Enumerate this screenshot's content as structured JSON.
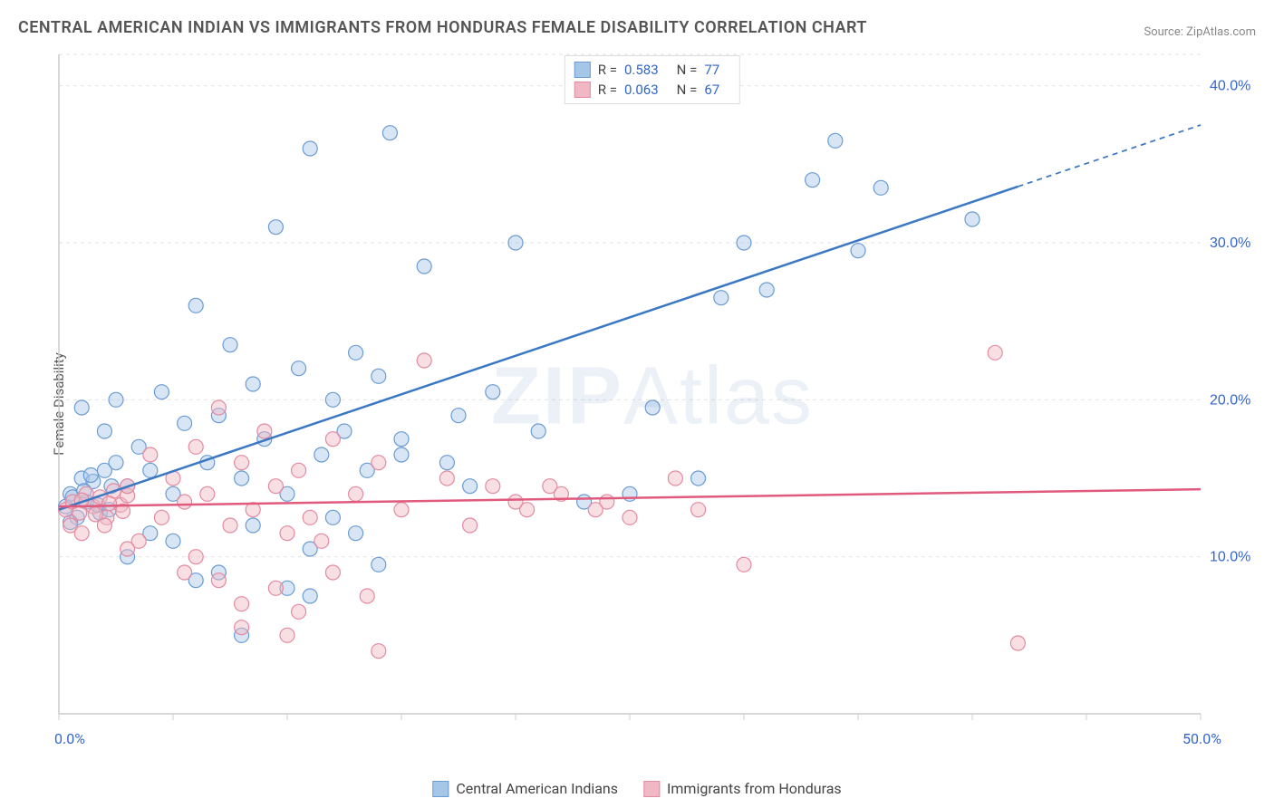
{
  "title": "CENTRAL AMERICAN INDIAN VS IMMIGRANTS FROM HONDURAS FEMALE DISABILITY CORRELATION CHART",
  "source": "Source: ZipAtlas.com",
  "y_axis_label": "Female Disability",
  "watermark": "ZIPAtlas",
  "chart": {
    "type": "scatter",
    "background_color": "#ffffff",
    "grid_color": "#e2e2e2",
    "axis_line_color": "#cccccc",
    "tick_label_color": "#3366cc",
    "xlim": [
      0,
      50
    ],
    "ylim": [
      0,
      42
    ],
    "x_ticks": [
      0,
      5,
      10,
      15,
      20,
      25,
      30,
      35,
      40,
      45,
      50
    ],
    "x_tick_labels_shown": {
      "0": "0.0%",
      "50": "50.0%"
    },
    "y_ticks": [
      10,
      20,
      30,
      40
    ],
    "y_tick_labels": {
      "10": "10.0%",
      "20": "20.0%",
      "30": "30.0%",
      "40": "40.0%"
    },
    "marker_radius": 8,
    "marker_opacity": 0.45,
    "line_width": 2.5,
    "series": [
      {
        "name": "Central American Indians",
        "color_fill": "#a6c6e8",
        "color_stroke": "#6a9cd4",
        "line_color": "#3b78c4",
        "r": "0.583",
        "n": "77",
        "trend_start": {
          "x": 0,
          "y": 13.0
        },
        "trend_end": {
          "x": 50,
          "y": 37.5
        },
        "trend_solid_end_x": 42,
        "points": [
          [
            0.3,
            13.2
          ],
          [
            0.5,
            14.0
          ],
          [
            0.8,
            12.5
          ],
          [
            1.0,
            15.0
          ],
          [
            1.2,
            13.5
          ],
          [
            1.5,
            14.8
          ],
          [
            1.8,
            12.8
          ],
          [
            2.0,
            15.5
          ],
          [
            2.2,
            13.0
          ],
          [
            2.5,
            16.0
          ],
          [
            0.6,
            13.8
          ],
          [
            1.1,
            14.2
          ],
          [
            1.4,
            15.2
          ],
          [
            1.7,
            13.3
          ],
          [
            2.3,
            14.5
          ],
          [
            0.5,
            12.2
          ],
          [
            1.0,
            19.5
          ],
          [
            2.0,
            18.0
          ],
          [
            2.5,
            20.0
          ],
          [
            3.0,
            14.5
          ],
          [
            3.5,
            17.0
          ],
          [
            4.0,
            15.5
          ],
          [
            4.5,
            20.5
          ],
          [
            5.0,
            14.0
          ],
          [
            5.5,
            18.5
          ],
          [
            6.0,
            26.0
          ],
          [
            6.5,
            16.0
          ],
          [
            7.0,
            19.0
          ],
          [
            7.5,
            23.5
          ],
          [
            8.0,
            15.0
          ],
          [
            8.5,
            21.0
          ],
          [
            9.0,
            17.5
          ],
          [
            9.5,
            31.0
          ],
          [
            10.0,
            14.0
          ],
          [
            10.5,
            22.0
          ],
          [
            11.0,
            36.0
          ],
          [
            11.5,
            16.5
          ],
          [
            12.0,
            20.0
          ],
          [
            12.5,
            18.0
          ],
          [
            13.0,
            23.0
          ],
          [
            13.5,
            15.5
          ],
          [
            14.0,
            21.5
          ],
          [
            14.5,
            37.0
          ],
          [
            15.0,
            17.5
          ],
          [
            16.0,
            28.5
          ],
          [
            17.0,
            16.0
          ],
          [
            17.5,
            19.0
          ],
          [
            18.0,
            14.5
          ],
          [
            19.0,
            20.5
          ],
          [
            20.0,
            30.0
          ],
          [
            21.0,
            18.0
          ],
          [
            3.0,
            10.0
          ],
          [
            5.0,
            11.0
          ],
          [
            7.0,
            9.0
          ],
          [
            8.5,
            12.0
          ],
          [
            10.0,
            8.0
          ],
          [
            11.0,
            10.5
          ],
          [
            13.0,
            11.5
          ],
          [
            14.0,
            9.5
          ],
          [
            8.0,
            5.0
          ],
          [
            11.0,
            7.5
          ],
          [
            12.0,
            12.5
          ],
          [
            6.0,
            8.5
          ],
          [
            4.0,
            11.5
          ],
          [
            15.0,
            16.5
          ],
          [
            28.0,
            15.0
          ],
          [
            29.0,
            26.5
          ],
          [
            30.0,
            30.0
          ],
          [
            31.0,
            27.0
          ],
          [
            33.0,
            34.0
          ],
          [
            34.0,
            36.5
          ],
          [
            35.0,
            29.5
          ],
          [
            36.0,
            33.5
          ],
          [
            40.0,
            31.5
          ],
          [
            23.0,
            13.5
          ],
          [
            25.0,
            14.0
          ],
          [
            26.0,
            19.5
          ]
        ]
      },
      {
        "name": "Immigrants from Honduras",
        "color_fill": "#f0b8c4",
        "color_stroke": "#e48aa0",
        "line_color": "#e05a7e",
        "r": "0.063",
        "n": "67",
        "trend_start": {
          "x": 0,
          "y": 13.2
        },
        "trend_end": {
          "x": 50,
          "y": 14.3
        },
        "trend_solid_end_x": 50,
        "points": [
          [
            0.3,
            13.0
          ],
          [
            0.6,
            13.5
          ],
          [
            0.9,
            12.8
          ],
          [
            1.2,
            14.0
          ],
          [
            1.5,
            13.2
          ],
          [
            1.8,
            13.8
          ],
          [
            2.1,
            12.5
          ],
          [
            2.4,
            14.2
          ],
          [
            2.7,
            13.3
          ],
          [
            3.0,
            13.9
          ],
          [
            0.5,
            12.0
          ],
          [
            1.0,
            13.6
          ],
          [
            1.6,
            12.7
          ],
          [
            2.2,
            13.4
          ],
          [
            2.8,
            12.9
          ],
          [
            1.0,
            11.5
          ],
          [
            2.0,
            12.0
          ],
          [
            3.0,
            14.5
          ],
          [
            3.5,
            11.0
          ],
          [
            4.0,
            16.5
          ],
          [
            4.5,
            12.5
          ],
          [
            5.0,
            15.0
          ],
          [
            5.5,
            13.5
          ],
          [
            6.0,
            17.0
          ],
          [
            6.5,
            14.0
          ],
          [
            7.0,
            19.5
          ],
          [
            7.5,
            12.0
          ],
          [
            8.0,
            16.0
          ],
          [
            8.5,
            13.0
          ],
          [
            9.0,
            18.0
          ],
          [
            9.5,
            14.5
          ],
          [
            10.0,
            11.5
          ],
          [
            10.5,
            15.5
          ],
          [
            11.0,
            12.5
          ],
          [
            12.0,
            17.5
          ],
          [
            13.0,
            14.0
          ],
          [
            14.0,
            16.0
          ],
          [
            15.0,
            13.0
          ],
          [
            16.0,
            22.5
          ],
          [
            17.0,
            15.0
          ],
          [
            18.0,
            12.0
          ],
          [
            19.0,
            14.5
          ],
          [
            20.0,
            13.5
          ],
          [
            3.0,
            10.5
          ],
          [
            5.5,
            9.0
          ],
          [
            7.0,
            8.5
          ],
          [
            8.0,
            7.0
          ],
          [
            9.5,
            8.0
          ],
          [
            10.5,
            6.5
          ],
          [
            12.0,
            9.0
          ],
          [
            13.5,
            7.5
          ],
          [
            14.0,
            4.0
          ],
          [
            8.0,
            5.5
          ],
          [
            10.0,
            5.0
          ],
          [
            11.5,
            11.0
          ],
          [
            6.0,
            10.0
          ],
          [
            22.0,
            14.0
          ],
          [
            24.0,
            13.5
          ],
          [
            25.0,
            12.5
          ],
          [
            27.0,
            15.0
          ],
          [
            28.0,
            13.0
          ],
          [
            30.0,
            9.5
          ],
          [
            41.0,
            23.0
          ],
          [
            42.0,
            4.5
          ],
          [
            20.5,
            13.0
          ],
          [
            21.5,
            14.5
          ],
          [
            23.5,
            13.0
          ]
        ]
      }
    ]
  },
  "legend_bottom": [
    {
      "label": "Central American Indians",
      "fill": "#a6c6e8",
      "stroke": "#6a9cd4"
    },
    {
      "label": "Immigrants from Honduras",
      "fill": "#f0b8c4",
      "stroke": "#e48aa0"
    }
  ]
}
